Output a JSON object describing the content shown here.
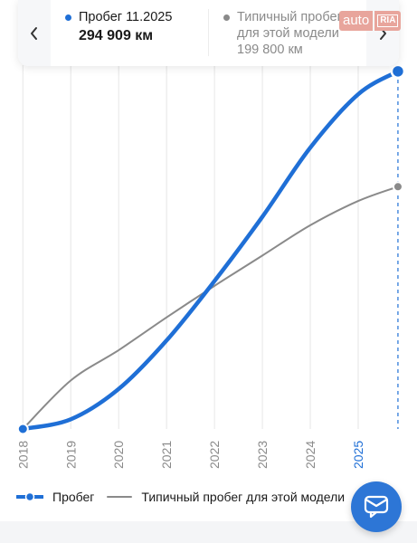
{
  "card": {
    "metric1_label": "Пробег 11.2025",
    "metric1_value": "294 909 км",
    "metric2_label_line1": "Типичный пробег",
    "metric2_label_line2": "для этой модели",
    "metric2_value": "199 800 км"
  },
  "logo": {
    "part1": "auto",
    "part2": "RIA"
  },
  "legend": {
    "series1": "Пробег",
    "series2": "Типичный пробег для этой модели"
  },
  "icons": {
    "nav_prev": "chevron-left-icon",
    "nav_next": "chevron-right-icon",
    "fab": "chat-bubble-icon"
  },
  "colors": {
    "mileage": "#1f6fd6",
    "typical": "#8a8a8a",
    "grid": "#e6e6e6",
    "highlight_tick": "#1f6fd6",
    "fab": "#2d76d6"
  },
  "chart_data": {
    "type": "line",
    "x": [
      2018,
      2019,
      2020,
      2021,
      2022,
      2023,
      2024,
      2025,
      2025.83
    ],
    "xlim": [
      2017.9,
      2025.85
    ],
    "ylim": [
      0,
      300000
    ],
    "tick_labels": [
      "2018",
      "2019",
      "2020",
      "2021",
      "2022",
      "2023",
      "2024",
      "2025"
    ],
    "highlighted_tick": "2025",
    "grid": true,
    "legend_position": "bottom-left",
    "series": [
      {
        "name": "Пробег",
        "values": [
          0,
          8000,
          33000,
          73000,
          122000,
          175000,
          232000,
          276000,
          294909
        ]
      },
      {
        "name": "Типичный пробег для этой модели",
        "values": [
          0,
          40000,
          65000,
          92000,
          118000,
          143000,
          168000,
          188000,
          199800
        ]
      }
    ]
  }
}
